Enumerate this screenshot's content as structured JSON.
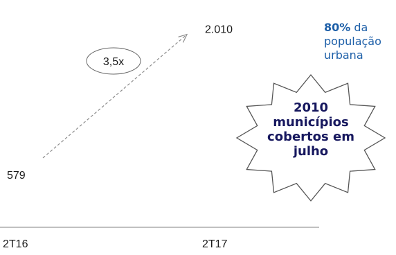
{
  "chart_data": {
    "type": "line",
    "categories": [
      "2T16",
      "2T17"
    ],
    "values": [
      579,
      2010
    ],
    "value_labels": [
      "579",
      "2.010"
    ],
    "growth_label": "3,5x",
    "ylim": [
      0,
      2200
    ],
    "grid": false,
    "line_style": "dashed-arrow"
  },
  "callout": {
    "pct": "80%",
    "pct_suffix": " da",
    "line2": "população",
    "line3": "urbana"
  },
  "badge": {
    "lines": [
      "2010",
      "municípios",
      "cobertos em",
      "julho"
    ]
  },
  "colors": {
    "line": "#8c8c8c",
    "axis": "#9a9a9a",
    "text": "#1a1a1a",
    "callout": "#1d5fa8",
    "badge_text": "#16175e",
    "badge_stroke": "#555555"
  }
}
